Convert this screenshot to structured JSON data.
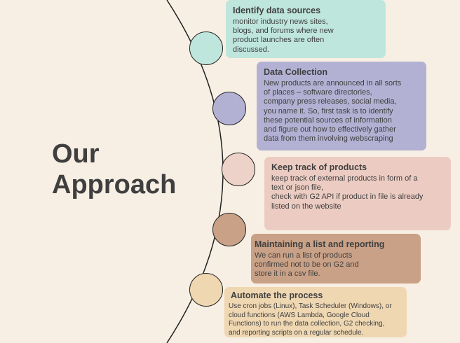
{
  "title": {
    "line1": "Our",
    "line2": "Approach"
  },
  "steps": [
    {
      "heading": "Identify data sources",
      "body": " monitor industry news sites,\nblogs, and forums where new\nproduct launches are often\ndiscussed.",
      "card_color": "#bfe6dc",
      "node_color": "#bfe6dc"
    },
    {
      "heading": "Data Collection",
      "body": "New products are announced in all sorts\nof places – software directories,\ncompany press releases, social media,\nyou name it. So, first task is to identify\nthese potential sources of information\nand figure out how to effectively gather\ndata from them involving webscraping",
      "card_color": "#b3b1d3",
      "node_color": "#b3b1d3"
    },
    {
      "heading": "Keep track of products",
      "body": " keep track of external products in form of a\ntext or json file,\ncheck with G2 API if product in file is already\nlisted on the website",
      "card_color": "#ecccc2",
      "node_color": "#ecd2c8"
    },
    {
      "heading": "Maintaining a list and reporting",
      "body": "We can run a list of products\nconfirmed not to be on G2 and\nstore it in a csv file.",
      "card_color": "#c9a187",
      "node_color": "#c9a187"
    },
    {
      "heading": "Automate the process",
      "body": "Use cron jobs (Linux), Task Scheduler (Windows), or\ncloud functions (AWS Lambda, Google Cloud\nFunctions) to run the data collection, G2 checking,\nand reporting scripts on a regular schedule.",
      "card_color": "#efd7b2",
      "node_color": "#efd7b2"
    }
  ]
}
